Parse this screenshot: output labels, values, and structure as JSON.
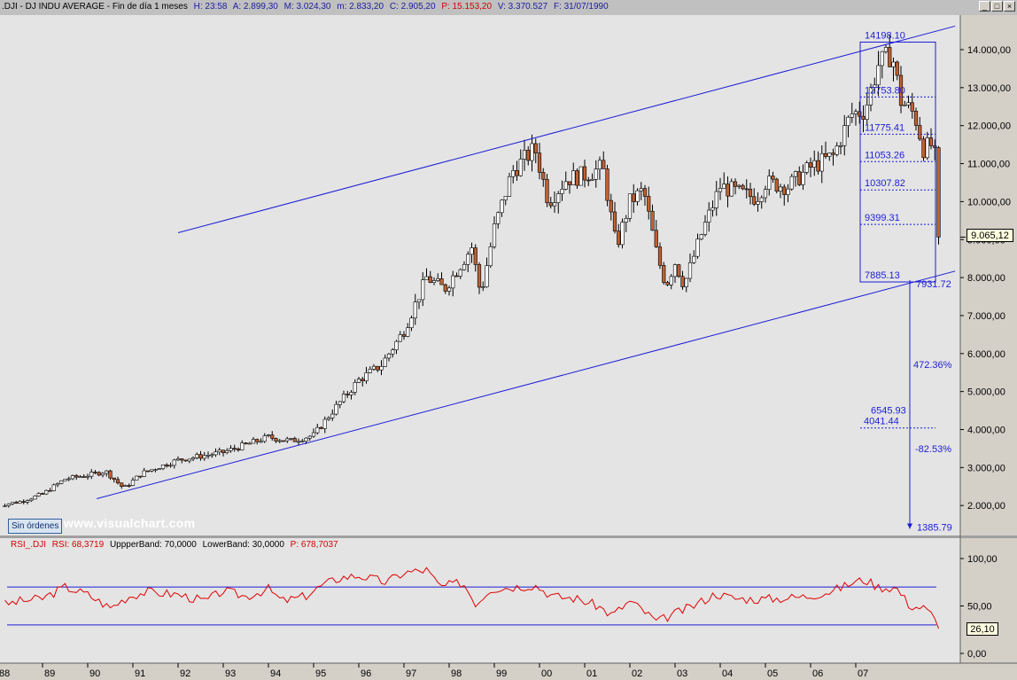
{
  "header": {
    "symbol": ".DJI - DJ INDU AVERAGE - Fin de día 1 meses",
    "h": "H: 23:58",
    "a": "A: 2.899,30",
    "m": "M: 3.024,30",
    "min": "m: 2.833,20",
    "c": "C: 2.905,20",
    "p": "P: 15.153,20",
    "v": "V: 3.370.527",
    "f": "F: 31/07/1990"
  },
  "window_buttons": {
    "minimize": "_",
    "maximize": "□",
    "close": "×"
  },
  "watermark": "www.visualchart.com",
  "orders_badge": "Sin órdenes",
  "price_tag": "9.065,12",
  "rsi_tag": "26,10",
  "rsi_header": {
    "name": "RSI_.DJI",
    "rsi": "RSI: 68,3719",
    "upper": "UppperBand: 70,0000",
    "lower": "LowerBand: 30,0000",
    "p": "P: 678,7037"
  },
  "colors": {
    "plot_bg": "#e4e4e4",
    "axis_bg": "#d4d0c8",
    "trend_line": "#1c1cd8",
    "candle_up": "#ffffff",
    "candle_down": "#c06030",
    "rsi_line": "#e00000",
    "rsi_band": "#1c1cd8"
  },
  "chart_data": [
    {
      "type": "candlestick",
      "title": ".DJI - DJ INDU AVERAGE - Fin de día 1 meses",
      "y_ticks": [
        "2.000,00",
        "3.000,00",
        "4.000,00",
        "5.000,00",
        "6.000,00",
        "7.000,00",
        "8.000,00",
        "9.000,00",
        "10.000,00",
        "11.000,00",
        "12.000,00",
        "13.000,00",
        "14.000,00"
      ],
      "y_tick_values": [
        2000,
        3000,
        4000,
        5000,
        6000,
        7000,
        8000,
        9000,
        10000,
        11000,
        12000,
        13000,
        14000
      ],
      "x_labels": [
        "88",
        "89",
        "90",
        "91",
        "92",
        "93",
        "94",
        "95",
        "96",
        "97",
        "98",
        "99",
        "00",
        "01",
        "02",
        "03",
        "04",
        "05",
        "06",
        "07"
      ],
      "x_label_years": [
        1988,
        1989,
        1990,
        1991,
        1992,
        1993,
        1994,
        1995,
        1996,
        1997,
        1998,
        1999,
        2000,
        2001,
        2002,
        2003,
        2004,
        2005,
        2006,
        2007
      ],
      "close_anchors": [
        [
          1988.0,
          2000
        ],
        [
          1988.5,
          2100
        ],
        [
          1989.0,
          2300
        ],
        [
          1989.5,
          2700
        ],
        [
          1990.0,
          2800
        ],
        [
          1990.4,
          2900
        ],
        [
          1990.8,
          2450
        ],
        [
          1991.2,
          2850
        ],
        [
          1992.0,
          3200
        ],
        [
          1993.0,
          3400
        ],
        [
          1994.0,
          3800
        ],
        [
          1994.5,
          3700
        ],
        [
          1995.0,
          3850
        ],
        [
          1995.5,
          4600
        ],
        [
          1996.0,
          5300
        ],
        [
          1996.5,
          5700
        ],
        [
          1997.0,
          6600
        ],
        [
          1997.5,
          8000
        ],
        [
          1997.9,
          7700
        ],
        [
          1998.5,
          8800
        ],
        [
          1998.7,
          7550
        ],
        [
          1999.0,
          9300
        ],
        [
          1999.4,
          10800
        ],
        [
          1999.9,
          11400
        ],
        [
          2000.2,
          10000
        ],
        [
          2000.6,
          10600
        ],
        [
          2001.0,
          10700
        ],
        [
          2001.4,
          10900
        ],
        [
          2001.7,
          8800
        ],
        [
          2002.0,
          10000
        ],
        [
          2002.3,
          10300
        ],
        [
          2002.6,
          8600
        ],
        [
          2002.8,
          7800
        ],
        [
          2003.0,
          8400
        ],
        [
          2003.2,
          7800
        ],
        [
          2003.6,
          9200
        ],
        [
          2004.0,
          10400
        ],
        [
          2004.5,
          10200
        ],
        [
          2004.8,
          10100
        ],
        [
          2005.0,
          10500
        ],
        [
          2005.5,
          10400
        ],
        [
          2006.0,
          10900
        ],
        [
          2006.5,
          11200
        ],
        [
          2006.9,
          12300
        ],
        [
          2007.2,
          12400
        ],
        [
          2007.5,
          13600
        ],
        [
          2007.8,
          13900
        ],
        [
          2008.0,
          12650
        ],
        [
          2008.3,
          12300
        ],
        [
          2008.5,
          11400
        ],
        [
          2008.7,
          11500
        ],
        [
          2008.8,
          10850
        ],
        [
          2008.85,
          9065
        ]
      ],
      "last_price": 9065.12,
      "channel_upper": {
        "from": [
          1992.0,
          9180
        ],
        "to": [
          2009.2,
          14620
        ]
      },
      "channel_lower": {
        "from": [
          1990.2,
          2180
        ],
        "to": [
          2009.2,
          8170
        ]
      },
      "fib_box": {
        "top": 14198.1,
        "bottom": 7885.13
      },
      "fib_levels": [
        {
          "label": "14198.10",
          "value": 14198.1
        },
        {
          "label": "12753.80",
          "value": 12753.8
        },
        {
          "label": "11775.41",
          "value": 11775.41
        },
        {
          "label": "11053.26",
          "value": 11053.26
        },
        {
          "label": "10307.82",
          "value": 10307.82
        },
        {
          "label": "9399.31",
          "value": 9399.31
        },
        {
          "label": "7885.13",
          "value": 7885.13
        }
      ],
      "projection": {
        "start_label": "7931.72",
        "start": 7931.72,
        "up_pct": "472.36%",
        "mid_label_a": "6545.93",
        "mid_label_b": "4041.44",
        "mid": 4041.44,
        "down_pct": "-82.53%",
        "end_label": "1385.79",
        "end": 1385.79
      }
    },
    {
      "type": "line",
      "title": "RSI_.DJI",
      "y_ticks": [
        "0,00",
        "50,00",
        "100,00"
      ],
      "y_tick_values": [
        0,
        50,
        100
      ],
      "upper_band": 70,
      "lower_band": 30,
      "series": [
        {
          "name": "RSI_.DJI",
          "anchors": [
            [
              1988.0,
              50
            ],
            [
              1988.5,
              55
            ],
            [
              1989.0,
              58
            ],
            [
              1989.5,
              70
            ],
            [
              1990.0,
              62
            ],
            [
              1990.5,
              48
            ],
            [
              1990.9,
              60
            ],
            [
              1991.3,
              65
            ],
            [
              1992.0,
              62
            ],
            [
              1992.6,
              55
            ],
            [
              1993.0,
              66
            ],
            [
              1993.5,
              60
            ],
            [
              1994.0,
              68
            ],
            [
              1994.3,
              55
            ],
            [
              1994.8,
              60
            ],
            [
              1995.2,
              72
            ],
            [
              1995.6,
              80
            ],
            [
              1996.0,
              82
            ],
            [
              1996.6,
              75
            ],
            [
              1997.0,
              85
            ],
            [
              1997.5,
              88
            ],
            [
              1997.8,
              70
            ],
            [
              1998.3,
              75
            ],
            [
              1998.6,
              52
            ],
            [
              1998.9,
              68
            ],
            [
              1999.4,
              70
            ],
            [
              1999.9,
              72
            ],
            [
              2000.3,
              60
            ],
            [
              2000.8,
              58
            ],
            [
              2001.3,
              50
            ],
            [
              2001.6,
              40
            ],
            [
              2002.0,
              55
            ],
            [
              2002.3,
              45
            ],
            [
              2002.6,
              33
            ],
            [
              2002.9,
              40
            ],
            [
              2003.4,
              50
            ],
            [
              2003.9,
              63
            ],
            [
              2004.3,
              58
            ],
            [
              2004.8,
              57
            ],
            [
              2005.3,
              58
            ],
            [
              2005.9,
              60
            ],
            [
              2006.5,
              66
            ],
            [
              2006.9,
              74
            ],
            [
              2007.2,
              78
            ],
            [
              2007.5,
              70
            ],
            [
              2007.9,
              69
            ],
            [
              2008.2,
              50
            ],
            [
              2008.5,
              48
            ],
            [
              2008.7,
              40
            ],
            [
              2008.85,
              26.1
            ]
          ]
        }
      ]
    }
  ]
}
